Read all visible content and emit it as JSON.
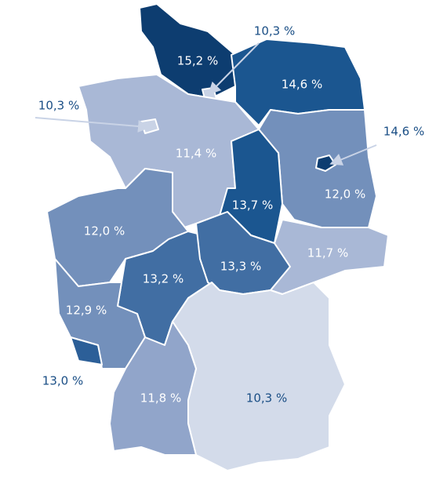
{
  "regions": [
    {
      "label": "15,2 %",
      "color": "#0d3d70"
    },
    {
      "label": "10,3 %",
      "color": "#c9d3e6"
    },
    {
      "label": "14,6 %",
      "color": "#1b5690"
    },
    {
      "label": "11,4 %",
      "color": "#a9b8d6"
    },
    {
      "label": "10,3 %",
      "color": "#c9d3e6"
    },
    {
      "label": "12,0 %",
      "color": "#7390bb"
    },
    {
      "label": "14,6 %",
      "color": "#0d3d70"
    },
    {
      "label": "13,7 %",
      "color": "#1b5690"
    },
    {
      "label": "12,0 %",
      "color": "#7390bb"
    },
    {
      "label": "13,2 %",
      "color": "#416ea3"
    },
    {
      "label": "13,3 %",
      "color": "#416ea3"
    },
    {
      "label": "11,7 %",
      "color": "#a9b8d6"
    },
    {
      "label": "12,9 %",
      "color": "#7390bb"
    },
    {
      "label": "13,0 %",
      "color": "#2c5f98"
    },
    {
      "label": "10,3 %",
      "color": "#d3dbea"
    },
    {
      "label": "11,8 %",
      "color": "#91a5ca"
    }
  ]
}
